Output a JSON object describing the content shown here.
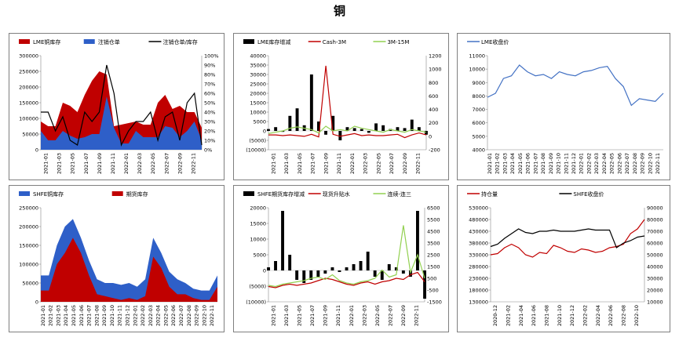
{
  "page_title": "铜",
  "months_2021_2022": [
    "2021-01",
    "2021-02",
    "2021-03",
    "2021-04",
    "2021-05",
    "2021-06",
    "2021-07",
    "2021-08",
    "2021-09",
    "2021-10",
    "2021-11",
    "2021-12",
    "2022-01",
    "2022-02",
    "2022-03",
    "2022-04",
    "2022-05",
    "2022-06",
    "2022-07",
    "2022-08",
    "2022-09",
    "2022-10",
    "2022-11"
  ],
  "colors": {
    "red": "#c00000",
    "blue": "#2e5fc8",
    "black": "#000000",
    "green": "#92d050",
    "lme_blue": "#4472c4"
  },
  "chart_data": [
    {
      "id": "lme-stock",
      "type": "area",
      "legend": [
        "LME铜库存",
        "注销仓单",
        "注销仓单/库存"
      ],
      "x_ticks": [
        "2021-01",
        "2021-03",
        "2021-05",
        "2021-07",
        "2021-09",
        "2021-11",
        "2022-01",
        "2022-03",
        "2022-05",
        "2022-07",
        "2022-09",
        "2022-11"
      ],
      "y_left": {
        "min": 0,
        "max": 300000,
        "ticks": [
          "0",
          "50000",
          "100000",
          "150000",
          "200000",
          "250000",
          "300000"
        ]
      },
      "y_right": {
        "min": 0,
        "max": 100,
        "ticks": [
          "0%",
          "10%",
          "20%",
          "30%",
          "40%",
          "50%",
          "60%",
          "70%",
          "80%",
          "90%",
          "100%"
        ]
      },
      "series": [
        {
          "name": "LME铜库存",
          "type": "area",
          "color": "#c00000",
          "values": [
            90000,
            75000,
            75000,
            150000,
            140000,
            120000,
            175000,
            220000,
            250000,
            240000,
            75000,
            80000,
            85000,
            90000,
            80000,
            80000,
            150000,
            175000,
            130000,
            140000,
            120000,
            120000,
            70000
          ]
        },
        {
          "name": "注销仓单",
          "type": "area",
          "color": "#2e5fc8",
          "values": [
            60000,
            30000,
            30000,
            60000,
            45000,
            35000,
            40000,
            50000,
            50000,
            170000,
            70000,
            20000,
            20000,
            60000,
            40000,
            40000,
            40000,
            75000,
            70000,
            40000,
            60000,
            90000,
            30000
          ]
        },
        {
          "name": "注销仓单/库存",
          "type": "line",
          "color": "#000000",
          "axis": "right",
          "values": [
            40,
            40,
            20,
            35,
            10,
            5,
            40,
            30,
            40,
            90,
            60,
            5,
            20,
            30,
            30,
            40,
            10,
            35,
            40,
            10,
            50,
            60,
            5
          ]
        }
      ]
    },
    {
      "id": "lme-spread",
      "type": "line",
      "legend": [
        "LME库存增减",
        "Cash-3M",
        "3M-15M"
      ],
      "x_ticks": [
        "2021-01",
        "2021-03",
        "2021-05",
        "2021-07",
        "2021-09",
        "2021-11",
        "2022-01",
        "2022-03",
        "2022-05",
        "2022-07",
        "2022-09",
        "2022-11"
      ],
      "y_left": {
        "min": -10000,
        "max": 40000,
        "ticks": [
          "(10000)",
          "(5000)",
          "0",
          "5000",
          "10000",
          "15000",
          "20000",
          "25000",
          "30000",
          "35000",
          "40000"
        ]
      },
      "y_right": {
        "min": -200,
        "max": 1200,
        "ticks": [
          "-200",
          "0",
          "200",
          "400",
          "600",
          "800",
          "1000",
          "1200"
        ]
      },
      "series": [
        {
          "name": "LME库存增减",
          "type": "bar",
          "color": "#000000",
          "values": [
            1000,
            2000,
            -500,
            8000,
            12000,
            3000,
            30000,
            5000,
            -2000,
            8000,
            -5000,
            2000,
            1500,
            1000,
            -1000,
            4000,
            3000,
            1000,
            2000,
            1500,
            6000,
            2000,
            -2000
          ]
        },
        {
          "name": "Cash-3M",
          "type": "line",
          "color": "#c00000",
          "axis": "right",
          "values": [
            20,
            20,
            10,
            20,
            10,
            0,
            30,
            -10,
            1050,
            30,
            0,
            20,
            40,
            10,
            20,
            10,
            10,
            20,
            30,
            -20,
            20,
            50,
            20
          ]
        },
        {
          "name": "3M-15M",
          "type": "line",
          "color": "#92d050",
          "axis": "right",
          "values": [
            40,
            60,
            80,
            120,
            140,
            120,
            100,
            50,
            150,
            80,
            100,
            80,
            150,
            120,
            100,
            80,
            60,
            100,
            80,
            60,
            100,
            80,
            60
          ]
        }
      ]
    },
    {
      "id": "lme-price",
      "type": "line",
      "legend": [
        "LME收盘价"
      ],
      "x_ticks": [
        "2021-01",
        "2021-02",
        "2021-03",
        "2021-04",
        "2021-05",
        "2021-06",
        "2021-07",
        "2021-08",
        "2021-09",
        "2021-10",
        "2021-11",
        "2021-12",
        "2022-01",
        "2022-02",
        "2022-03",
        "2022-04",
        "2022-05",
        "2022-06",
        "2022-07",
        "2022-08",
        "2022-09",
        "2022-10",
        "2022-11"
      ],
      "y_left": {
        "min": 4000,
        "max": 11000,
        "ticks": [
          "4000",
          "5000",
          "6000",
          "7000",
          "8000",
          "9000",
          "10000",
          "11000"
        ]
      },
      "series": [
        {
          "name": "LME收盘价",
          "type": "line",
          "color": "#4472c4",
          "values": [
            7900,
            8200,
            9300,
            9500,
            10300,
            9800,
            9500,
            9600,
            9300,
            9800,
            9600,
            9500,
            9800,
            9900,
            10100,
            10200,
            9300,
            8700,
            7300,
            7800,
            7700,
            7600,
            8200
          ]
        }
      ]
    },
    {
      "id": "shfe-stock",
      "type": "area",
      "legend": [
        "SHFE铜库存",
        "期货库存"
      ],
      "x_ticks": [
        "2021-01",
        "2021-02",
        "2021-03",
        "2021-04",
        "2021-05",
        "2021-06",
        "2021-07",
        "2021-08",
        "2021-09",
        "2021-10",
        "2021-11",
        "2021-12",
        "2022-01",
        "2022-02",
        "2022-03",
        "2022-04",
        "2022-05",
        "2022-06",
        "2022-07",
        "2022-08",
        "2022-09",
        "2022-10",
        "2022-11"
      ],
      "y_left": {
        "min": 0,
        "max": 250000,
        "ticks": [
          "0",
          "50000",
          "100000",
          "150000",
          "200000",
          "250000"
        ]
      },
      "series": [
        {
          "name": "SHFE铜库存",
          "type": "area",
          "color": "#2e5fc8",
          "values": [
            70000,
            70000,
            150000,
            200000,
            220000,
            170000,
            110000,
            60000,
            50000,
            50000,
            45000,
            50000,
            40000,
            60000,
            170000,
            130000,
            80000,
            60000,
            50000,
            35000,
            30000,
            30000,
            70000
          ]
        },
        {
          "name": "期货库存",
          "type": "area",
          "color": "#c00000",
          "values": [
            30000,
            30000,
            100000,
            130000,
            170000,
            130000,
            70000,
            20000,
            15000,
            10000,
            5000,
            10000,
            5000,
            15000,
            120000,
            90000,
            40000,
            20000,
            20000,
            10000,
            5000,
            5000,
            40000
          ]
        }
      ]
    },
    {
      "id": "shfe-spread",
      "type": "line",
      "legend": [
        "SHFE期货库存增减",
        "现货升贴水",
        "连续-连三"
      ],
      "x_ticks": [
        "2021-01",
        "2021-03",
        "2021-05",
        "2021-07",
        "2021-09",
        "2021-11",
        "2022-01",
        "2022-03",
        "2022-05",
        "2022-07",
        "2022-09",
        "2022-11"
      ],
      "y_left": {
        "min": -10000,
        "max": 20000,
        "ticks": [
          "(10000)",
          "(5000)",
          "0",
          "5000",
          "10000",
          "15000",
          "20000"
        ]
      },
      "y_right": {
        "min": -1500,
        "max": 6500,
        "ticks": [
          "-1500",
          "-500",
          "500",
          "1500",
          "2500",
          "3500",
          "4500",
          "5500",
          "6500"
        ]
      },
      "series": [
        {
          "name": "SHFE期货库存增减",
          "type": "bar",
          "color": "#000000",
          "values": [
            1000,
            3000,
            19000,
            5000,
            -3000,
            -4000,
            -3000,
            -2000,
            -1000,
            1000,
            -500,
            1000,
            2000,
            3000,
            6000,
            -2000,
            -3000,
            2000,
            1000,
            -1000,
            -2000,
            19000,
            -9000
          ]
        },
        {
          "name": "现货升贴水",
          "type": "line",
          "color": "#c00000",
          "axis": "right",
          "values": [
            -200,
            -300,
            -100,
            0,
            -100,
            0,
            100,
            300,
            500,
            400,
            200,
            0,
            -100,
            100,
            200,
            0,
            200,
            300,
            500,
            400,
            800,
            1000,
            200
          ]
        },
        {
          "name": "连续-连三",
          "type": "line",
          "color": "#92d050",
          "axis": "right",
          "values": [
            -100,
            -200,
            0,
            100,
            200,
            300,
            500,
            600,
            400,
            800,
            300,
            100,
            0,
            200,
            300,
            500,
            1200,
            600,
            800,
            5000,
            1000,
            2500,
            500
          ]
        }
      ]
    },
    {
      "id": "shfe-price",
      "type": "line",
      "legend": [
        "持仓量",
        "SHFE收盘价"
      ],
      "x_ticks": [
        "2020-12",
        "2021-02",
        "2021-04",
        "2021-06",
        "2021-08",
        "2021-10",
        "2021-12",
        "2022-02",
        "2022-04",
        "2022-06",
        "2022-08",
        "2022-10"
      ],
      "y_left": {
        "min": 130000,
        "max": 530000,
        "ticks": [
          "130000",
          "180000",
          "230000",
          "280000",
          "330000",
          "380000",
          "430000",
          "480000",
          "530000"
        ]
      },
      "y_right": {
        "min": 10000,
        "max": 90000,
        "ticks": [
          "10000",
          "20000",
          "30000",
          "40000",
          "50000",
          "60000",
          "70000",
          "80000",
          "90000"
        ]
      },
      "series": [
        {
          "name": "持仓量",
          "type": "line",
          "color": "#c00000",
          "values": [
            330000,
            335000,
            360000,
            375000,
            360000,
            330000,
            320000,
            340000,
            335000,
            370000,
            360000,
            345000,
            340000,
            355000,
            350000,
            340000,
            345000,
            360000,
            365000,
            375000,
            420000,
            440000,
            480000
          ]
        },
        {
          "name": "SHFE收盘价",
          "type": "line",
          "color": "#000000",
          "axis": "right",
          "values": [
            57000,
            59000,
            64000,
            68000,
            72000,
            69000,
            68000,
            70000,
            70000,
            71000,
            70000,
            70000,
            70000,
            71000,
            72000,
            71000,
            71000,
            71000,
            56000,
            60000,
            62000,
            65000,
            66000
          ]
        }
      ]
    }
  ]
}
